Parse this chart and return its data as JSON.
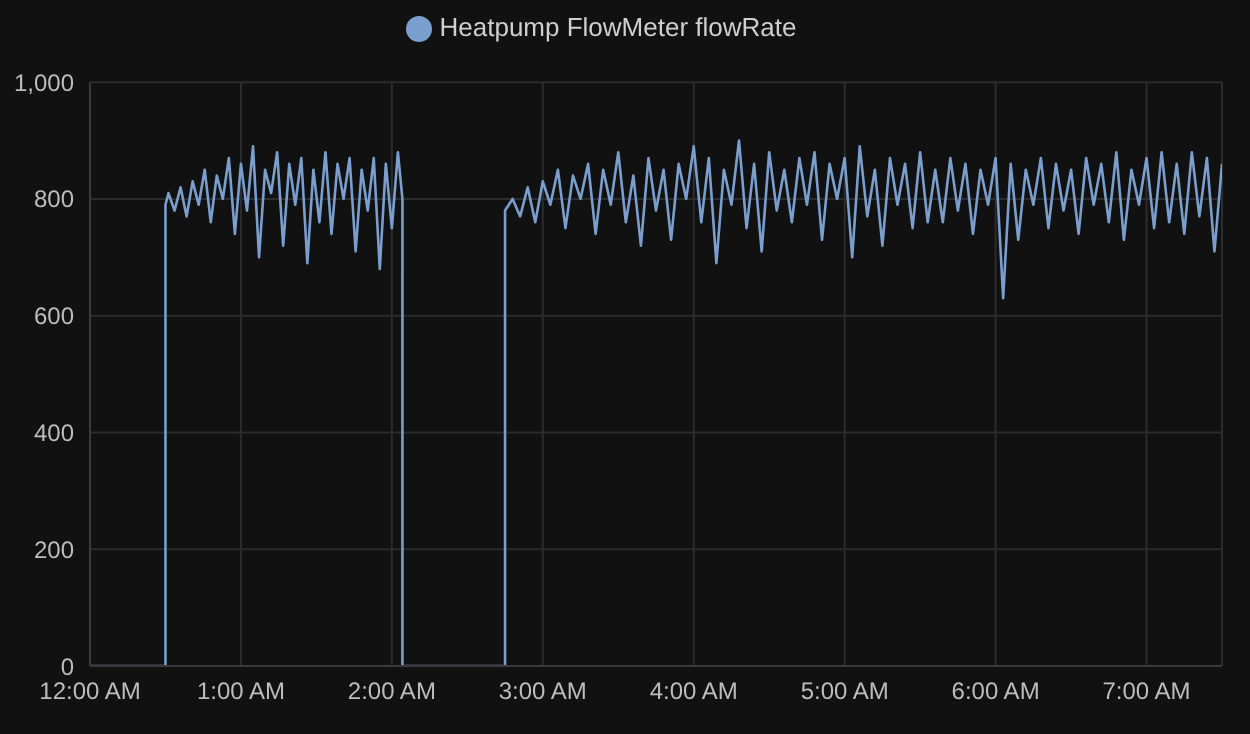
{
  "chart_data": {
    "type": "line",
    "legend": "top",
    "grid": true,
    "marker": "none",
    "line_style": "solid",
    "xlim": [
      0,
      7.5
    ],
    "xticks": [
      {
        "value": 0,
        "label": "12:00 AM"
      },
      {
        "value": 1,
        "label": "1:00 AM"
      },
      {
        "value": 2,
        "label": "2:00 AM"
      },
      {
        "value": 3,
        "label": "3:00 AM"
      },
      {
        "value": 4,
        "label": "4:00 AM"
      },
      {
        "value": 5,
        "label": "5:00 AM"
      },
      {
        "value": 6,
        "label": "6:00 AM"
      },
      {
        "value": 7,
        "label": "7:00 AM"
      }
    ],
    "ylim": [
      0,
      1000
    ],
    "yticks": [
      0,
      200,
      400,
      600,
      800,
      {
        "value": 1000,
        "label": "1,000"
      }
    ],
    "x": [
      0,
      0.5,
      0.5,
      0.52,
      0.56,
      0.6,
      0.64,
      0.68,
      0.72,
      0.76,
      0.8,
      0.84,
      0.88,
      0.92,
      0.96,
      1,
      1.04,
      1.08,
      1.12,
      1.16,
      1.2,
      1.24,
      1.28,
      1.32,
      1.36,
      1.4,
      1.44,
      1.48,
      1.52,
      1.56,
      1.6,
      1.64,
      1.68,
      1.72,
      1.76,
      1.8,
      1.84,
      1.88,
      1.92,
      1.96,
      2,
      2.04,
      2.07,
      2.07,
      2.75,
      2.75,
      2.8,
      2.85,
      2.9,
      2.95,
      3,
      3.05,
      3.1,
      3.15,
      3.2,
      3.25,
      3.3,
      3.35,
      3.4,
      3.45,
      3.5,
      3.55,
      3.6,
      3.65,
      3.7,
      3.75,
      3.8,
      3.85,
      3.9,
      3.95,
      4,
      4.05,
      4.1,
      4.15,
      4.2,
      4.25,
      4.3,
      4.35,
      4.4,
      4.45,
      4.5,
      4.55,
      4.6,
      4.65,
      4.7,
      4.75,
      4.8,
      4.85,
      4.9,
      4.95,
      5,
      5.05,
      5.1,
      5.15,
      5.2,
      5.25,
      5.3,
      5.35,
      5.4,
      5.45,
      5.5,
      5.55,
      5.6,
      5.65,
      5.7,
      5.75,
      5.8,
      5.85,
      5.9,
      5.95,
      6,
      6.05,
      6.1,
      6.15,
      6.2,
      6.25,
      6.3,
      6.35,
      6.4,
      6.45,
      6.5,
      6.55,
      6.6,
      6.65,
      6.7,
      6.75,
      6.8,
      6.85,
      6.9,
      6.95,
      7,
      7.05,
      7.1,
      7.15,
      7.2,
      7.25,
      7.3,
      7.35,
      7.4,
      7.45,
      7.5
    ],
    "series": [
      {
        "name": "Heatpump FlowMeter flowRate",
        "color": "#7a9fcf",
        "values": [
          0,
          0,
          790,
          810,
          780,
          820,
          770,
          830,
          790,
          850,
          760,
          840,
          800,
          870,
          740,
          860,
          780,
          890,
          700,
          850,
          810,
          880,
          720,
          860,
          790,
          870,
          690,
          850,
          760,
          880,
          740,
          860,
          800,
          870,
          710,
          850,
          780,
          870,
          680,
          860,
          750,
          880,
          800,
          0,
          0,
          780,
          800,
          770,
          820,
          760,
          830,
          790,
          850,
          750,
          840,
          800,
          860,
          740,
          850,
          790,
          880,
          760,
          840,
          720,
          870,
          780,
          850,
          730,
          860,
          800,
          890,
          760,
          870,
          690,
          850,
          790,
          900,
          750,
          860,
          710,
          880,
          780,
          850,
          760,
          870,
          790,
          880,
          730,
          860,
          800,
          870,
          700,
          890,
          770,
          850,
          720,
          870,
          790,
          860,
          750,
          880,
          760,
          850,
          760,
          870,
          780,
          860,
          740,
          850,
          790,
          870,
          630,
          860,
          730,
          850,
          790,
          870,
          750,
          860,
          780,
          850,
          740,
          870,
          790,
          860,
          760,
          880,
          730,
          850,
          790,
          870,
          750,
          880,
          760,
          860,
          740,
          880,
          770,
          870,
          710,
          860
        ]
      }
    ]
  }
}
